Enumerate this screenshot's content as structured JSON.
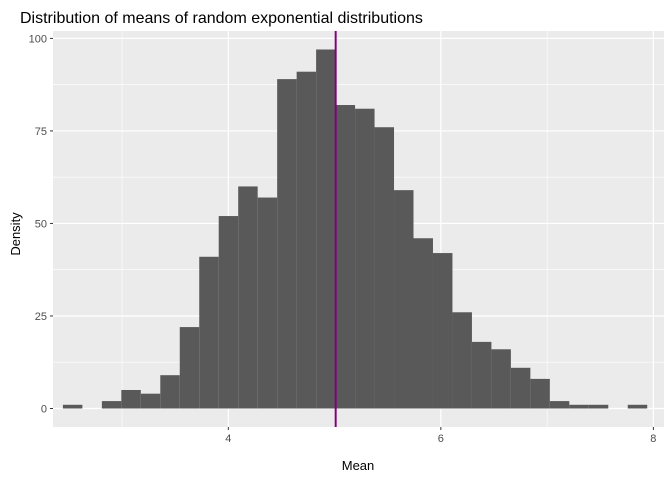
{
  "chart_data": {
    "type": "histogram",
    "title": "Distribution of means of random exponential distributions",
    "xlabel": "Mean",
    "ylabel": "Density",
    "xlim": [
      2.35,
      8.1
    ],
    "ylim": [
      -5,
      102
    ],
    "x_ticks": [
      4,
      6,
      8
    ],
    "y_ticks": [
      0,
      25,
      50,
      75,
      100
    ],
    "x_tick_labels": [
      "4",
      "6",
      "8"
    ],
    "y_tick_labels": [
      "0",
      "25",
      "50",
      "75",
      "100"
    ],
    "bin_width": 0.1833,
    "bins": [
      {
        "x0": 2.4432,
        "x1": 2.6265,
        "count": 1
      },
      {
        "x0": 2.6265,
        "x1": 2.8098,
        "count": 0
      },
      {
        "x0": 2.8098,
        "x1": 2.9931,
        "count": 2
      },
      {
        "x0": 2.9931,
        "x1": 3.1764,
        "count": 5
      },
      {
        "x0": 3.1764,
        "x1": 3.3597,
        "count": 4
      },
      {
        "x0": 3.3597,
        "x1": 3.543,
        "count": 9
      },
      {
        "x0": 3.543,
        "x1": 3.7263,
        "count": 22
      },
      {
        "x0": 3.7263,
        "x1": 3.9096,
        "count": 41
      },
      {
        "x0": 3.9096,
        "x1": 4.0929,
        "count": 52
      },
      {
        "x0": 4.0929,
        "x1": 4.2762,
        "count": 60
      },
      {
        "x0": 4.2762,
        "x1": 4.4595,
        "count": 57
      },
      {
        "x0": 4.4595,
        "x1": 4.6428,
        "count": 89
      },
      {
        "x0": 4.6428,
        "x1": 4.8261,
        "count": 91
      },
      {
        "x0": 4.8261,
        "x1": 5.0094,
        "count": 97
      },
      {
        "x0": 5.0094,
        "x1": 5.1927,
        "count": 82
      },
      {
        "x0": 5.1927,
        "x1": 5.376,
        "count": 81
      },
      {
        "x0": 5.376,
        "x1": 5.5593,
        "count": 76
      },
      {
        "x0": 5.5593,
        "x1": 5.7426,
        "count": 59
      },
      {
        "x0": 5.7426,
        "x1": 5.9259,
        "count": 46
      },
      {
        "x0": 5.9259,
        "x1": 6.1092,
        "count": 42
      },
      {
        "x0": 6.1092,
        "x1": 6.2925,
        "count": 26
      },
      {
        "x0": 6.2925,
        "x1": 6.4758,
        "count": 18
      },
      {
        "x0": 6.4758,
        "x1": 6.6591,
        "count": 16
      },
      {
        "x0": 6.6591,
        "x1": 6.8424,
        "count": 11
      },
      {
        "x0": 6.8424,
        "x1": 7.0257,
        "count": 8
      },
      {
        "x0": 7.0257,
        "x1": 7.209,
        "count": 2
      },
      {
        "x0": 7.209,
        "x1": 7.3923,
        "count": 1
      },
      {
        "x0": 7.3923,
        "x1": 7.5756,
        "count": 1
      },
      {
        "x0": 7.5756,
        "x1": 7.7589,
        "count": 0
      },
      {
        "x0": 7.7589,
        "x1": 7.9422,
        "count": 1
      }
    ],
    "vline": {
      "x": 5.01,
      "color": "#800080"
    },
    "bar_color": "#595959",
    "panel_background": "#ebebeb",
    "grid": true,
    "grid_color": "#ffffff",
    "legend": "none"
  }
}
